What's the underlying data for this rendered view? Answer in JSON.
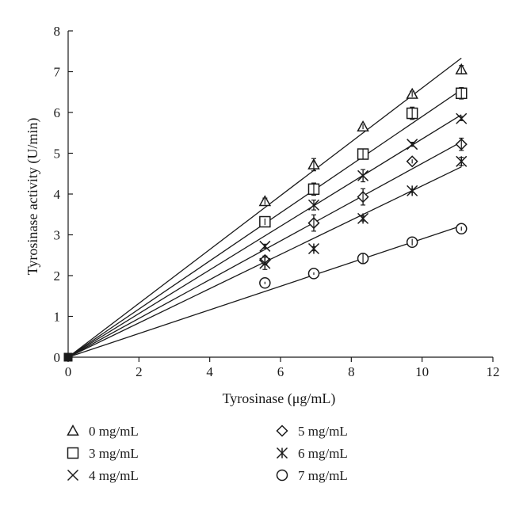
{
  "chart_data": {
    "type": "scatter",
    "xlabel": "Tyrosinase (μg/mL)",
    "ylabel": "Tyrosinase activity (U/min)",
    "xlim": [
      0,
      12
    ],
    "ylim": [
      0,
      8
    ],
    "xticks": [
      "0",
      "2",
      "4",
      "6",
      "8",
      "10",
      "12"
    ],
    "yticks": [
      "0",
      "1",
      "2",
      "3",
      "4",
      "5",
      "6",
      "7",
      "8"
    ],
    "grid": false,
    "legend_position": "bottom",
    "x": [
      0,
      5.56,
      6.94,
      8.33,
      9.72,
      11.11
    ],
    "series": [
      {
        "name": "0 mg/mL",
        "marker": "triangle",
        "values": [
          0,
          3.82,
          4.72,
          5.65,
          6.45,
          7.05
        ],
        "errors": [
          0,
          0.08,
          0.15,
          0.06,
          0.07,
          0.1
        ],
        "fit_slope": 0.66
      },
      {
        "name": "3 mg/mL",
        "marker": "square",
        "values": [
          0,
          3.32,
          4.12,
          4.98,
          5.98,
          6.47
        ],
        "errors": [
          0,
          0.08,
          0.15,
          0.12,
          0.15,
          0.14
        ],
        "fit_slope": 0.59
      },
      {
        "name": "4 mg/mL",
        "marker": "x",
        "values": [
          0,
          2.72,
          3.73,
          4.45,
          5.22,
          5.85
        ],
        "errors": [
          0,
          0.05,
          0.12,
          0.15,
          0.05,
          0.05
        ],
        "fit_slope": 0.535
      },
      {
        "name": "5 mg/mL",
        "marker": "diamond",
        "values": [
          0,
          2.38,
          3.29,
          3.93,
          4.8,
          5.22
        ],
        "errors": [
          0,
          0.1,
          0.2,
          0.2,
          0.05,
          0.15
        ],
        "fit_slope": 0.475
      },
      {
        "name": "6 mg/mL",
        "marker": "asterisk",
        "values": [
          0,
          2.3,
          2.66,
          3.4,
          4.08,
          4.8
        ],
        "errors": [
          0,
          0.15,
          0.05,
          0.06,
          0.04,
          0.1
        ],
        "fit_slope": 0.42
      },
      {
        "name": "7 mg/mL",
        "marker": "circle",
        "values": [
          0,
          1.82,
          2.05,
          2.42,
          2.82,
          3.15
        ],
        "errors": [
          0,
          0.03,
          0.03,
          0.12,
          0.08,
          0.05
        ],
        "fit_slope": 0.29
      }
    ]
  }
}
